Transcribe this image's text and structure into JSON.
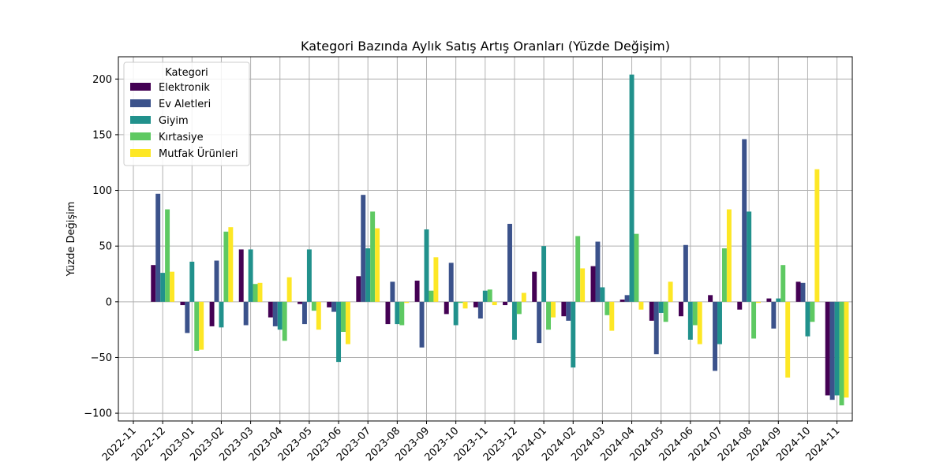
{
  "chart_data": {
    "type": "bar",
    "title": "Kategori Bazında Aylık Satış Artış Oranları (Yüzde Değişim)",
    "xlabel": "",
    "ylabel": "Yüzde Değişim",
    "ylim": [
      -107,
      220
    ],
    "yticks": [
      -100,
      -50,
      0,
      50,
      100,
      150,
      200
    ],
    "ytick_labels": [
      "−100",
      "−50",
      "0",
      "50",
      "100",
      "150",
      "200"
    ],
    "grid": true,
    "legend": {
      "title": "Kategori",
      "placement": "top-left"
    },
    "categories": [
      "2022-11",
      "2022-12",
      "2023-01",
      "2023-02",
      "2023-03",
      "2023-04",
      "2023-05",
      "2023-06",
      "2023-07",
      "2023-08",
      "2023-09",
      "2023-10",
      "2023-11",
      "2023-12",
      "2024-01",
      "2024-02",
      "2024-03",
      "2024-04",
      "2024-05",
      "2024-06",
      "2024-07",
      "2024-08",
      "2024-09",
      "2024-10",
      "2024-11"
    ],
    "series": [
      {
        "name": "Elektronik",
        "color": "#440154",
        "values": [
          null,
          33,
          -3,
          -22,
          47,
          -14,
          -2,
          -5,
          23,
          -20,
          19,
          -11,
          -5,
          -3,
          27,
          -13,
          32,
          2,
          -17,
          -13,
          6,
          -7,
          3,
          18,
          -84
        ]
      },
      {
        "name": "Ev Aletleri",
        "color": "#3b528b",
        "values": [
          null,
          97,
          -28,
          37,
          -21,
          -22,
          -20,
          -9,
          96,
          18,
          -41,
          35,
          -15,
          70,
          -37,
          -17,
          54,
          6,
          -47,
          51,
          -62,
          146,
          -24,
          17,
          -88
        ]
      },
      {
        "name": "Giyim",
        "color": "#21918c",
        "values": [
          null,
          26,
          36,
          -23,
          47,
          -25,
          47,
          -54,
          48,
          -20,
          65,
          -21,
          10,
          -34,
          50,
          -59,
          13,
          204,
          -10,
          -34,
          -38,
          81,
          3,
          -31,
          -84
        ]
      },
      {
        "name": "Kırtasiye",
        "color": "#5ec962",
        "values": [
          null,
          83,
          -44,
          63,
          16,
          -35,
          -8,
          -27,
          81,
          -21,
          10,
          -1,
          11,
          -11,
          -25,
          59,
          -12,
          61,
          -18,
          -21,
          48,
          -33,
          33,
          -18,
          -93
        ]
      },
      {
        "name": "Mutfak Ürünleri",
        "color": "#fde725",
        "values": [
          null,
          27,
          -43,
          67,
          17,
          22,
          -25,
          -38,
          66,
          -1,
          40,
          -6,
          -3,
          8,
          -14,
          30,
          -26,
          -7,
          18,
          -38,
          83,
          -1,
          -68,
          119,
          -86
        ]
      }
    ]
  }
}
